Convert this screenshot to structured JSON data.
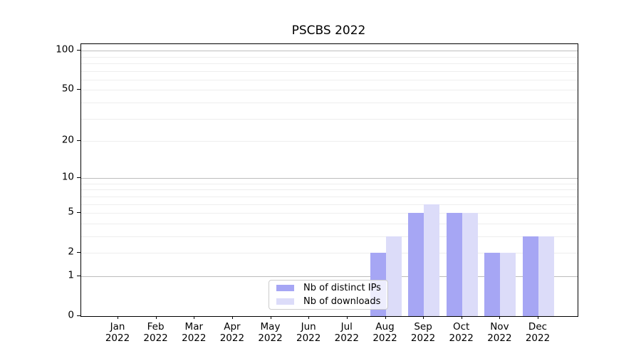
{
  "chart_data": {
    "type": "bar",
    "title": "PSCBS 2022",
    "xlabel": "",
    "ylabel": "",
    "categories": [
      "Jan 2022",
      "Feb 2022",
      "Mar 2022",
      "Apr 2022",
      "May 2022",
      "Jun 2022",
      "Jul 2022",
      "Aug 2022",
      "Sep 2022",
      "Oct 2022",
      "Nov 2022",
      "Dec 2022"
    ],
    "series": [
      {
        "name": "Nb of distinct IPs",
        "color": "#a6a6f4",
        "values": [
          0,
          0,
          0,
          0,
          0,
          0,
          0,
          2,
          5,
          5,
          2,
          3
        ]
      },
      {
        "name": "Nb of downloads",
        "color": "#dcdcf9",
        "values": [
          0,
          0,
          0,
          0,
          0,
          0,
          0,
          3,
          6,
          5,
          2,
          3
        ]
      }
    ],
    "y_scale": "log10(1+x)",
    "ylim": [
      0,
      106
    ],
    "y_ticks": [
      0,
      1,
      2,
      5,
      10,
      20,
      50,
      100
    ],
    "gridlines": {
      "major": [
        1,
        10,
        100
      ],
      "minor": [
        2,
        3,
        4,
        5,
        6,
        7,
        8,
        9,
        20,
        30,
        40,
        50,
        60,
        70,
        80,
        90
      ]
    },
    "legend_position": "inside-bottom-center",
    "colors": {
      "spine": "#000000",
      "major_grid": "#bdbdbd",
      "minor_grid": "#eeeeee",
      "legend_border": "#cccccc",
      "legend_background": "rgba(255,255,255,0.8)",
      "text": "#000000"
    }
  }
}
